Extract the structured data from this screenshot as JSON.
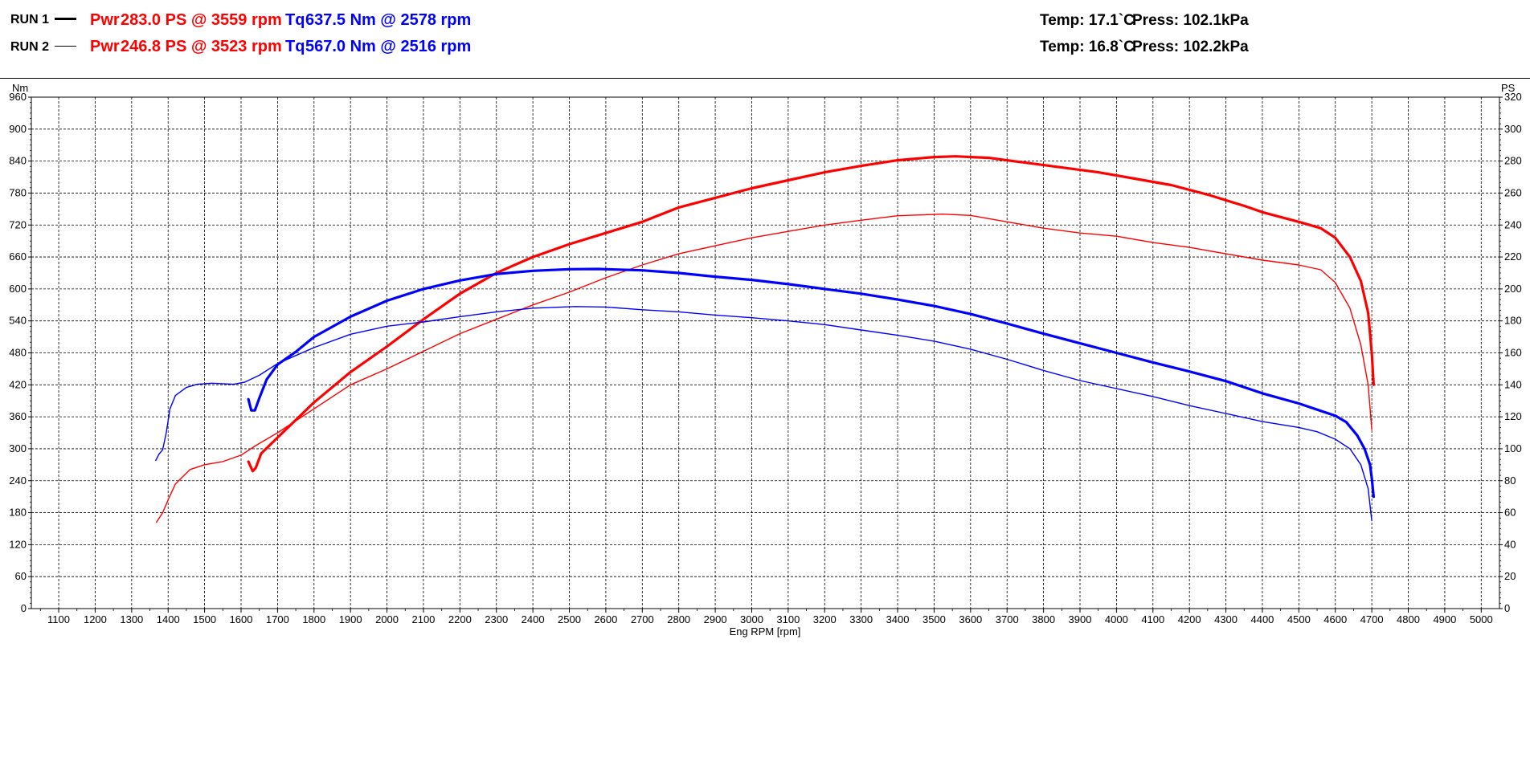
{
  "runs": [
    {
      "label": "RUN 1",
      "pwr_label": "Pwr",
      "pwr_value": "283.0 PS @ 3559 rpm",
      "tq_label": "Tq",
      "tq_value": "637.5 Nm @ 2578 rpm",
      "temp": "Temp: 17.1`C",
      "press": "Press: 102.1kPa"
    },
    {
      "label": "RUN 2",
      "pwr_label": "Pwr",
      "pwr_value": "246.8 PS @ 3523 rpm",
      "tq_label": "Tq",
      "tq_value": "567.0 Nm @ 2516 rpm",
      "temp": "Temp: 16.8`C",
      "press": "Press: 102.2kPa"
    }
  ],
  "colors": {
    "power": "#ff0000",
    "torque": "#0000ff",
    "grid": "#000000"
  },
  "chart_data": {
    "type": "line",
    "xlabel": "Eng RPM [rpm]",
    "ylabel_left": "Nm",
    "ylabel_right": "PS",
    "xlim": [
      1025,
      5050
    ],
    "ylim_left": [
      0,
      960
    ],
    "ylim_right": [
      0,
      320
    ],
    "x_ticks": [
      1100,
      1200,
      1300,
      1400,
      1500,
      1600,
      1700,
      1800,
      1900,
      2000,
      2100,
      2200,
      2300,
      2400,
      2500,
      2600,
      2700,
      2800,
      2900,
      3000,
      3100,
      3200,
      3300,
      3400,
      3500,
      3600,
      3700,
      3800,
      3900,
      4000,
      4100,
      4200,
      4300,
      4400,
      4500,
      4600,
      4700,
      4800,
      4900,
      5000
    ],
    "y_ticks_left": [
      0,
      60,
      120,
      180,
      240,
      300,
      360,
      420,
      480,
      540,
      600,
      660,
      720,
      780,
      840,
      900,
      960
    ],
    "y_ticks_right": [
      0,
      20,
      40,
      60,
      80,
      100,
      120,
      140,
      160,
      180,
      200,
      220,
      240,
      260,
      280,
      300,
      320
    ],
    "grid": true,
    "series": [
      {
        "run": "RUN 1",
        "quantity": "Power",
        "axis": "right",
        "color": "#ff0000",
        "weight": "thick",
        "points": [
          [
            1620,
            92
          ],
          [
            1632,
            86
          ],
          [
            1640,
            88
          ],
          [
            1655,
            97
          ],
          [
            1700,
            107
          ],
          [
            1800,
            129
          ],
          [
            1900,
            148
          ],
          [
            2000,
            164
          ],
          [
            2100,
            181
          ],
          [
            2200,
            197
          ],
          [
            2300,
            210
          ],
          [
            2400,
            220
          ],
          [
            2500,
            228
          ],
          [
            2600,
            235
          ],
          [
            2700,
            242
          ],
          [
            2800,
            251
          ],
          [
            2900,
            257
          ],
          [
            3000,
            263
          ],
          [
            3100,
            268
          ],
          [
            3200,
            273
          ],
          [
            3300,
            277
          ],
          [
            3400,
            280.5
          ],
          [
            3500,
            282.5
          ],
          [
            3559,
            283
          ],
          [
            3650,
            282
          ],
          [
            3750,
            279
          ],
          [
            3850,
            276
          ],
          [
            3950,
            273
          ],
          [
            4050,
            269
          ],
          [
            4150,
            265
          ],
          [
            4250,
            259
          ],
          [
            4350,
            252
          ],
          [
            4400,
            248
          ],
          [
            4500,
            242
          ],
          [
            4560,
            238
          ],
          [
            4600,
            232
          ],
          [
            4640,
            220
          ],
          [
            4670,
            205
          ],
          [
            4690,
            185
          ],
          [
            4700,
            160
          ],
          [
            4705,
            140
          ]
        ]
      },
      {
        "run": "RUN 2",
        "quantity": "Power",
        "axis": "right",
        "color": "#ff0000",
        "weight": "thin",
        "points": [
          [
            1368,
            54
          ],
          [
            1385,
            60
          ],
          [
            1400,
            68
          ],
          [
            1420,
            78
          ],
          [
            1460,
            87
          ],
          [
            1500,
            90
          ],
          [
            1550,
            92
          ],
          [
            1600,
            96
          ],
          [
            1640,
            102
          ],
          [
            1700,
            110
          ],
          [
            1800,
            125
          ],
          [
            1900,
            140
          ],
          [
            2000,
            150
          ],
          [
            2100,
            161
          ],
          [
            2200,
            172
          ],
          [
            2300,
            181
          ],
          [
            2400,
            190
          ],
          [
            2500,
            198
          ],
          [
            2600,
            207
          ],
          [
            2700,
            215
          ],
          [
            2800,
            222
          ],
          [
            2900,
            227
          ],
          [
            3000,
            232
          ],
          [
            3100,
            236
          ],
          [
            3200,
            240
          ],
          [
            3300,
            243
          ],
          [
            3400,
            245.8
          ],
          [
            3523,
            246.8
          ],
          [
            3600,
            246
          ],
          [
            3700,
            242
          ],
          [
            3800,
            238
          ],
          [
            3900,
            235
          ],
          [
            4000,
            233
          ],
          [
            4100,
            229
          ],
          [
            4200,
            226
          ],
          [
            4300,
            222
          ],
          [
            4400,
            218
          ],
          [
            4500,
            215
          ],
          [
            4560,
            212
          ],
          [
            4600,
            204
          ],
          [
            4640,
            188
          ],
          [
            4670,
            165
          ],
          [
            4690,
            140
          ],
          [
            4700,
            112
          ]
        ]
      },
      {
        "run": "RUN 1",
        "quantity": "Torque",
        "axis": "left",
        "color": "#0000ff",
        "weight": "thick",
        "points": [
          [
            1620,
            393
          ],
          [
            1628,
            372
          ],
          [
            1638,
            372
          ],
          [
            1650,
            395
          ],
          [
            1670,
            430
          ],
          [
            1700,
            458
          ],
          [
            1750,
            482
          ],
          [
            1800,
            510
          ],
          [
            1900,
            548
          ],
          [
            2000,
            578
          ],
          [
            2100,
            600
          ],
          [
            2200,
            616
          ],
          [
            2300,
            628
          ],
          [
            2400,
            634
          ],
          [
            2500,
            637
          ],
          [
            2578,
            637.5
          ],
          [
            2700,
            635
          ],
          [
            2800,
            630
          ],
          [
            2900,
            623
          ],
          [
            3000,
            617
          ],
          [
            3100,
            609
          ],
          [
            3200,
            600
          ],
          [
            3300,
            591
          ],
          [
            3400,
            580
          ],
          [
            3500,
            568
          ],
          [
            3600,
            553
          ],
          [
            3700,
            535
          ],
          [
            3800,
            516
          ],
          [
            3900,
            498
          ],
          [
            4000,
            480
          ],
          [
            4100,
            462
          ],
          [
            4200,
            445
          ],
          [
            4300,
            427
          ],
          [
            4400,
            404
          ],
          [
            4500,
            385
          ],
          [
            4600,
            362
          ],
          [
            4630,
            350
          ],
          [
            4660,
            325
          ],
          [
            4680,
            300
          ],
          [
            4695,
            270
          ],
          [
            4700,
            245
          ],
          [
            4705,
            210
          ]
        ]
      },
      {
        "run": "RUN 2",
        "quantity": "Torque",
        "axis": "left",
        "color": "#0000ff",
        "weight": "thin",
        "points": [
          [
            1366,
            278
          ],
          [
            1375,
            290
          ],
          [
            1385,
            298
          ],
          [
            1395,
            330
          ],
          [
            1405,
            375
          ],
          [
            1420,
            400
          ],
          [
            1450,
            415
          ],
          [
            1480,
            421
          ],
          [
            1520,
            423
          ],
          [
            1580,
            421
          ],
          [
            1610,
            425
          ],
          [
            1650,
            438
          ],
          [
            1700,
            460
          ],
          [
            1750,
            475
          ],
          [
            1800,
            490
          ],
          [
            1900,
            515
          ],
          [
            2000,
            530
          ],
          [
            2100,
            538
          ],
          [
            2200,
            548
          ],
          [
            2300,
            557
          ],
          [
            2400,
            564
          ],
          [
            2516,
            567
          ],
          [
            2600,
            566
          ],
          [
            2700,
            561
          ],
          [
            2800,
            557
          ],
          [
            2900,
            551
          ],
          [
            3000,
            546
          ],
          [
            3100,
            540
          ],
          [
            3200,
            533
          ],
          [
            3300,
            523
          ],
          [
            3400,
            513
          ],
          [
            3500,
            502
          ],
          [
            3600,
            487
          ],
          [
            3700,
            468
          ],
          [
            3800,
            447
          ],
          [
            3900,
            428
          ],
          [
            4000,
            413
          ],
          [
            4100,
            398
          ],
          [
            4200,
            381
          ],
          [
            4300,
            366
          ],
          [
            4400,
            351
          ],
          [
            4500,
            340
          ],
          [
            4550,
            332
          ],
          [
            4600,
            318
          ],
          [
            4640,
            300
          ],
          [
            4670,
            270
          ],
          [
            4690,
            225
          ],
          [
            4700,
            165
          ]
        ]
      }
    ]
  }
}
